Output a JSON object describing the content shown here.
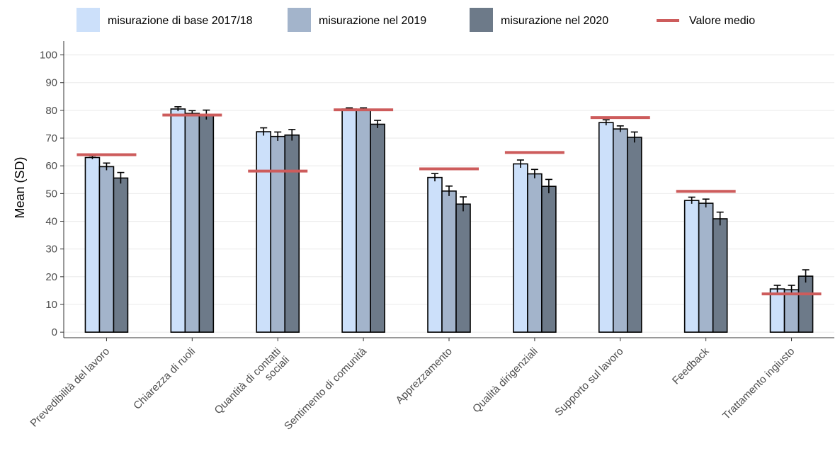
{
  "chart_data": {
    "type": "bar",
    "ylabel": "Mean (SD)",
    "xlabel": "",
    "ylim": [
      -2,
      105
    ],
    "yticks": [
      0,
      10,
      20,
      30,
      40,
      50,
      60,
      70,
      80,
      90,
      100
    ],
    "grid": true,
    "legend_position": "top",
    "categories": [
      [
        "Prevedibilità del lavoro"
      ],
      [
        "Chiarezza di ruoli"
      ],
      [
        "Quantità di contatti",
        "sociali"
      ],
      [
        "Sentimento di comunità"
      ],
      [
        "Apprezzamento"
      ],
      [
        "Qualità dirigenziali"
      ],
      [
        "Supporto sul lavoro"
      ],
      [
        "Feedback"
      ],
      [
        "Trattamento ingiusto"
      ]
    ],
    "series": [
      {
        "name": "misurazione di base 2017/18",
        "color": "#cce0fa",
        "values": [
          63.0,
          80.5,
          72.3,
          80.5,
          55.8,
          60.7,
          75.6,
          47.5,
          15.6
        ],
        "sd": [
          0.6,
          0.8,
          1.4,
          0.4,
          1.4,
          1.4,
          1.0,
          1.2,
          1.3
        ]
      },
      {
        "name": "misurazione nel 2019",
        "color": "#a3b4cb",
        "values": [
          59.7,
          78.9,
          70.6,
          80.4,
          50.9,
          57.1,
          73.3,
          46.5,
          15.3
        ],
        "sd": [
          1.3,
          1.0,
          1.6,
          0.5,
          1.8,
          1.6,
          1.1,
          1.5,
          1.6
        ]
      },
      {
        "name": "misurazione nel 2020",
        "color": "#6d7a89",
        "values": [
          55.6,
          78.4,
          71.1,
          75.0,
          46.2,
          52.6,
          70.3,
          40.9,
          20.2
        ],
        "sd": [
          2.0,
          1.7,
          2.0,
          1.4,
          2.6,
          2.5,
          1.9,
          2.4,
          2.3
        ]
      }
    ],
    "mean_line": {
      "name": "Valore medio",
      "color": "#cd5c5c",
      "values": [
        64.0,
        78.3,
        58.1,
        80.2,
        58.9,
        64.8,
        77.4,
        50.8,
        13.8
      ]
    }
  }
}
